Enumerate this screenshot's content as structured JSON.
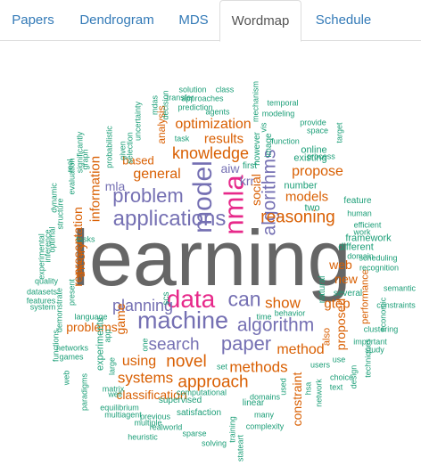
{
  "tabs": [
    {
      "label": "Papers",
      "active": false
    },
    {
      "label": "Dendrogram",
      "active": false
    },
    {
      "label": "MDS",
      "active": false
    },
    {
      "label": "Wordmap",
      "active": true
    },
    {
      "label": "Schedule",
      "active": false
    }
  ],
  "colors": {
    "orange": "#d95f02",
    "purple": "#7570b3",
    "teal": "#1b9e77",
    "magenta": "#e7298a",
    "gray": "#666666",
    "link": "#337ab7"
  },
  "wordmap": {
    "words": [
      {
        "text": "learning",
        "color": "gray"
      },
      {
        "text": "machine",
        "color": "purple"
      },
      {
        "text": "data",
        "color": "magenta"
      },
      {
        "text": "can",
        "color": "purple"
      },
      {
        "text": "applications",
        "color": "purple"
      },
      {
        "text": "model",
        "color": "purple"
      },
      {
        "text": "nmla",
        "color": "magenta"
      },
      {
        "text": "algorithms",
        "color": "purple"
      },
      {
        "text": "problem",
        "color": "purple"
      },
      {
        "text": "planning",
        "color": "purple"
      },
      {
        "text": "algorithm",
        "color": "purple"
      },
      {
        "text": "search",
        "color": "purple"
      },
      {
        "text": "paper",
        "color": "purple"
      },
      {
        "text": "novel",
        "color": "orange"
      },
      {
        "text": "systems",
        "color": "orange"
      },
      {
        "text": "approach",
        "color": "orange"
      },
      {
        "text": "methods",
        "color": "orange"
      },
      {
        "text": "reasoning",
        "color": "orange"
      },
      {
        "text": "knowledge",
        "color": "orange"
      },
      {
        "text": "optimization",
        "color": "orange"
      },
      {
        "text": "general",
        "color": "orange"
      },
      {
        "text": "results",
        "color": "orange"
      },
      {
        "text": "information",
        "color": "orange"
      },
      {
        "text": "show",
        "color": "orange"
      },
      {
        "text": "method",
        "color": "orange"
      },
      {
        "text": "using",
        "color": "orange"
      },
      {
        "text": "gtep",
        "color": "orange"
      },
      {
        "text": "models",
        "color": "orange"
      },
      {
        "text": "propose",
        "color": "orange"
      },
      {
        "text": "proposed",
        "color": "orange"
      },
      {
        "text": "constraint",
        "color": "orange"
      },
      {
        "text": "representation",
        "color": "orange"
      },
      {
        "text": "problems",
        "color": "orange"
      },
      {
        "text": "game",
        "color": "orange"
      },
      {
        "text": "theory",
        "color": "orange"
      },
      {
        "text": "web",
        "color": "orange"
      },
      {
        "text": "new",
        "color": "orange"
      },
      {
        "text": "based",
        "color": "orange"
      },
      {
        "text": "classification",
        "color": "orange"
      },
      {
        "text": "mla",
        "color": "purple"
      },
      {
        "text": "aiw",
        "color": "purple"
      },
      {
        "text": "krr",
        "color": "purple"
      },
      {
        "text": "social",
        "color": "orange"
      },
      {
        "text": "analysis",
        "color": "orange"
      },
      {
        "text": "performance",
        "color": "orange"
      },
      {
        "text": "also",
        "color": "orange"
      },
      {
        "text": "different",
        "color": "teal"
      },
      {
        "text": "framework",
        "color": "teal"
      },
      {
        "text": "work",
        "color": "teal"
      },
      {
        "text": "domain",
        "color": "teal"
      },
      {
        "text": "feature",
        "color": "teal"
      },
      {
        "text": "online",
        "color": "teal"
      },
      {
        "text": "existing",
        "color": "teal"
      },
      {
        "text": "number",
        "color": "teal"
      },
      {
        "text": "two",
        "color": "teal"
      },
      {
        "text": "however",
        "color": "teal"
      },
      {
        "text": "first",
        "color": "teal"
      },
      {
        "text": "probabilistic",
        "color": "teal"
      },
      {
        "text": "selection",
        "color": "teal"
      },
      {
        "text": "agents",
        "color": "teal"
      },
      {
        "text": "modeling",
        "color": "teal"
      },
      {
        "text": "task",
        "color": "teal"
      },
      {
        "text": "approaches",
        "color": "teal"
      },
      {
        "text": "prediction",
        "color": "teal"
      },
      {
        "text": "transfer",
        "color": "teal"
      },
      {
        "text": "solution",
        "color": "teal"
      },
      {
        "text": "class",
        "color": "teal"
      },
      {
        "text": "mechanism",
        "color": "teal"
      },
      {
        "text": "temporal",
        "color": "teal"
      },
      {
        "text": "provide",
        "color": "teal"
      },
      {
        "text": "space",
        "color": "teal"
      },
      {
        "text": "target",
        "color": "teal"
      },
      {
        "text": "function",
        "color": "teal"
      },
      {
        "text": "process",
        "color": "teal"
      },
      {
        "text": "image",
        "color": "teal"
      },
      {
        "text": "vis",
        "color": "teal"
      },
      {
        "text": "mdas",
        "color": "teal"
      },
      {
        "text": "decision",
        "color": "teal"
      },
      {
        "text": "uncertainty",
        "color": "teal"
      },
      {
        "text": "given",
        "color": "teal"
      },
      {
        "text": "well",
        "color": "teal"
      },
      {
        "text": "significantly",
        "color": "teal"
      },
      {
        "text": "graph",
        "color": "teal"
      },
      {
        "text": "evaluation",
        "color": "teal"
      },
      {
        "text": "real",
        "color": "teal"
      },
      {
        "text": "dynamic",
        "color": "teal"
      },
      {
        "text": "structure",
        "color": "teal"
      },
      {
        "text": "optimal",
        "color": "teal"
      },
      {
        "text": "inference",
        "color": "teal"
      },
      {
        "text": "experimental",
        "color": "teal"
      },
      {
        "text": "system",
        "color": "teal"
      },
      {
        "text": "tasks",
        "color": "teal"
      },
      {
        "text": "quality",
        "color": "teal"
      },
      {
        "text": "datasets",
        "color": "teal"
      },
      {
        "text": "features",
        "color": "teal"
      },
      {
        "text": "present",
        "color": "teal"
      },
      {
        "text": "demonstrate",
        "color": "teal"
      },
      {
        "text": "language",
        "color": "teal"
      },
      {
        "text": "functions",
        "color": "teal"
      },
      {
        "text": "networks",
        "color": "teal"
      },
      {
        "text": "games",
        "color": "teal"
      },
      {
        "text": "app",
        "color": "teal"
      },
      {
        "text": "experiments",
        "color": "teal"
      },
      {
        "text": "large",
        "color": "teal"
      },
      {
        "text": "matrix",
        "color": "teal"
      },
      {
        "text": "web",
        "color": "teal"
      },
      {
        "text": "paradigms",
        "color": "teal"
      },
      {
        "text": "equilibrium",
        "color": "teal"
      },
      {
        "text": "multiagent",
        "color": "teal"
      },
      {
        "text": "previous",
        "color": "teal"
      },
      {
        "text": "multiple",
        "color": "teal"
      },
      {
        "text": "heuristic",
        "color": "teal"
      },
      {
        "text": "realworld",
        "color": "teal"
      },
      {
        "text": "sparse",
        "color": "teal"
      },
      {
        "text": "solving",
        "color": "teal"
      },
      {
        "text": "training",
        "color": "teal"
      },
      {
        "text": "stateart",
        "color": "teal"
      },
      {
        "text": "satisfaction",
        "color": "teal"
      },
      {
        "text": "supervised",
        "color": "teal"
      },
      {
        "text": "computational",
        "color": "teal"
      },
      {
        "text": "linear",
        "color": "teal"
      },
      {
        "text": "many",
        "color": "teal"
      },
      {
        "text": "complexity",
        "color": "teal"
      },
      {
        "text": "domains",
        "color": "teal"
      },
      {
        "text": "used",
        "color": "teal"
      },
      {
        "text": "hsa",
        "color": "teal"
      },
      {
        "text": "network",
        "color": "teal"
      },
      {
        "text": "users",
        "color": "teal"
      },
      {
        "text": "use",
        "color": "teal"
      },
      {
        "text": "text",
        "color": "teal"
      },
      {
        "text": "choice",
        "color": "teal"
      },
      {
        "text": "design",
        "color": "teal"
      },
      {
        "text": "techniques",
        "color": "teal"
      },
      {
        "text": "important",
        "color": "teal"
      },
      {
        "text": "study",
        "color": "teal"
      },
      {
        "text": "clustering",
        "color": "teal"
      },
      {
        "text": "economic",
        "color": "teal"
      },
      {
        "text": "constraints",
        "color": "teal"
      },
      {
        "text": "semantic",
        "color": "teal"
      },
      {
        "text": "recognition",
        "color": "teal"
      },
      {
        "text": "scheduling",
        "color": "teal"
      },
      {
        "text": "human",
        "color": "teal"
      },
      {
        "text": "efficient",
        "color": "teal"
      },
      {
        "text": "several",
        "color": "teal"
      },
      {
        "text": "natural",
        "color": "teal"
      },
      {
        "text": "time",
        "color": "teal"
      },
      {
        "text": "behavior",
        "color": "teal"
      },
      {
        "text": "scs",
        "color": "teal"
      },
      {
        "text": "one",
        "color": "teal"
      },
      {
        "text": "set",
        "color": "teal"
      },
      {
        "text": "user",
        "color": "teal"
      }
    ]
  }
}
